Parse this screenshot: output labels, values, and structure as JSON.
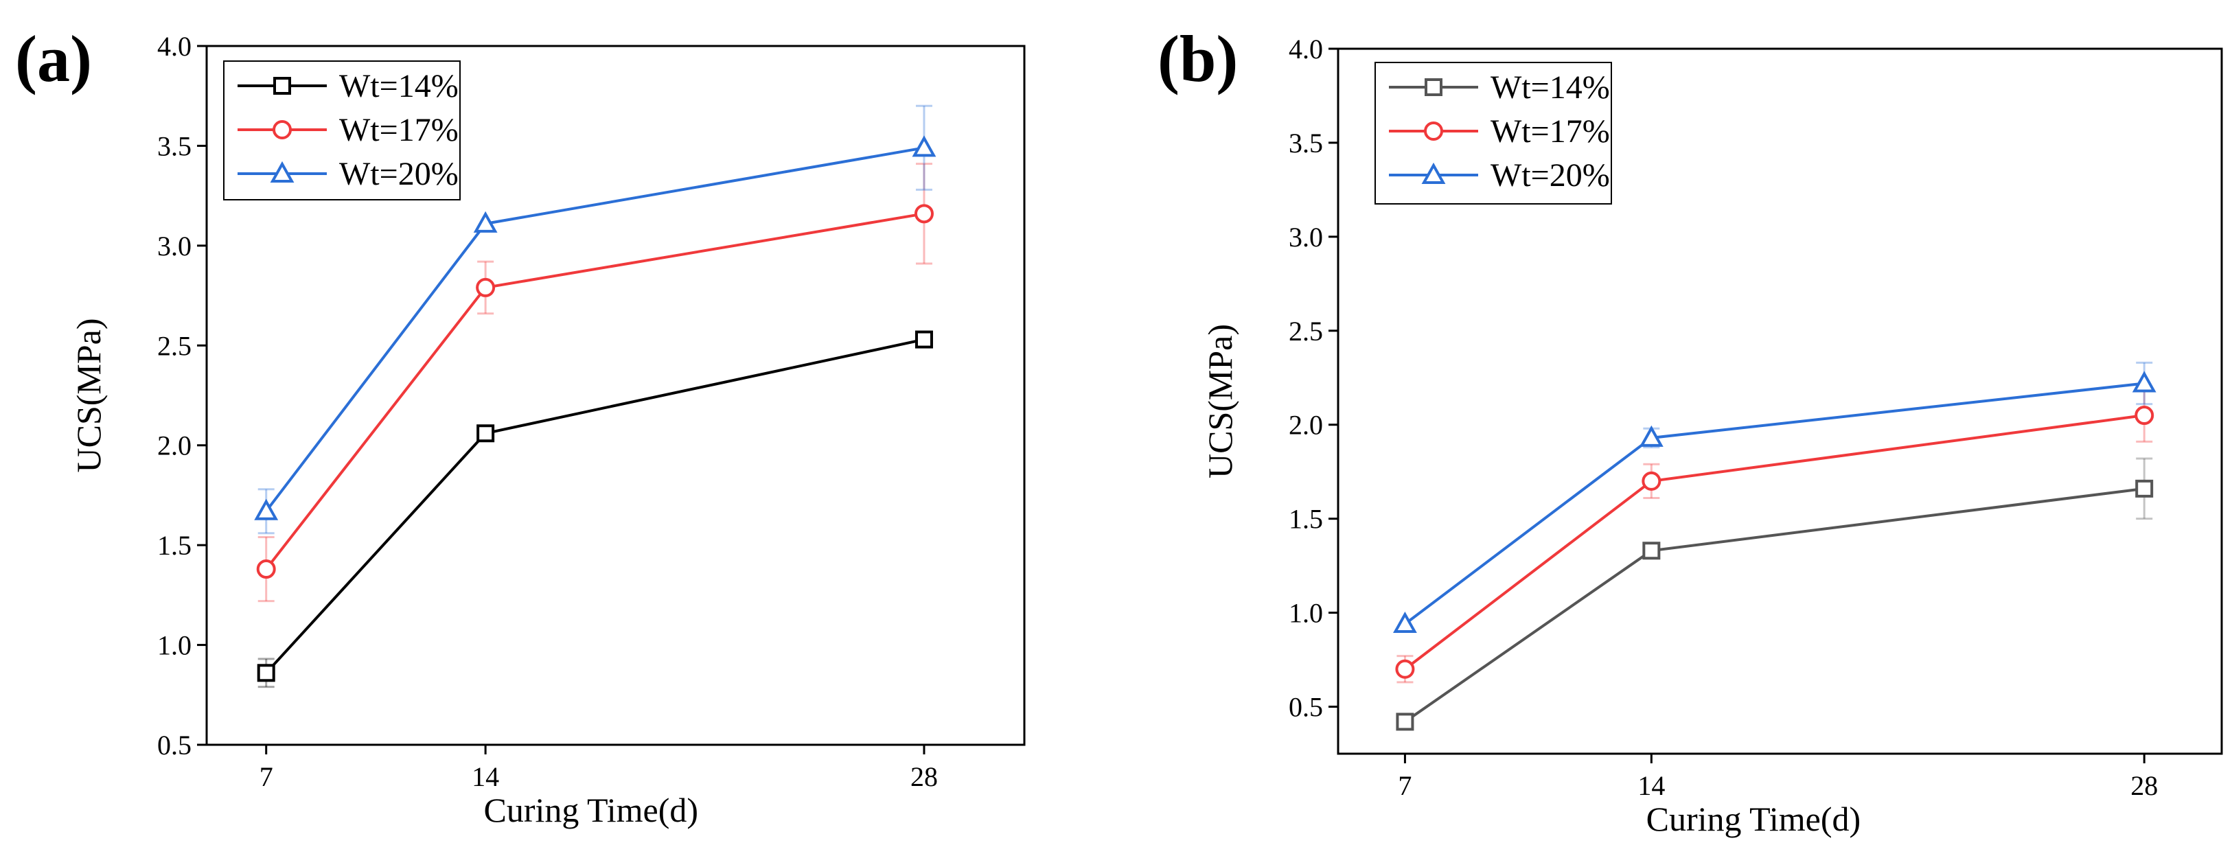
{
  "figure_labels": [
    "(a)",
    "(b)"
  ],
  "chart_data": [
    {
      "type": "line",
      "panel": "(a)",
      "xlabel": "Curing Time(d)",
      "ylabel": "UCS(MPa)",
      "x": [
        7,
        14,
        28
      ],
      "xticks": [
        "7",
        "14",
        "28"
      ],
      "xlim": [
        5.1,
        31.2
      ],
      "ylim": [
        0.5,
        4.0
      ],
      "yticks": [
        "0.5",
        "1.0",
        "1.5",
        "2.0",
        "2.5",
        "3.0",
        "3.5",
        "4.0"
      ],
      "legend_position": "top-left",
      "series": [
        {
          "name": "Wt=14%",
          "color": "#000000",
          "marker": "square",
          "values": [
            0.86,
            2.06,
            2.53
          ],
          "errors": [
            0.07,
            0.0,
            0.0
          ]
        },
        {
          "name": "Wt=17%",
          "color": "#f0393b",
          "marker": "circle",
          "values": [
            1.38,
            2.79,
            3.16
          ],
          "errors": [
            0.16,
            0.13,
            0.25
          ]
        },
        {
          "name": "Wt=20%",
          "color": "#2b6fd6",
          "marker": "triangle",
          "values": [
            1.67,
            3.11,
            3.49
          ],
          "errors": [
            0.11,
            0.0,
            0.21
          ]
        }
      ]
    },
    {
      "type": "line",
      "panel": "(b)",
      "xlabel": "Curing Time(d)",
      "ylabel": "UCS(MPa)",
      "x": [
        7,
        14,
        28
      ],
      "xticks": [
        "7",
        "14",
        "28"
      ],
      "xlim": [
        5.1,
        30.2
      ],
      "ylim": [
        0.25,
        4.0
      ],
      "yticks": [
        "0.5",
        "1.0",
        "1.5",
        "2.0",
        "2.5",
        "3.0",
        "3.5",
        "4.0"
      ],
      "legend_position": "top-left",
      "series": [
        {
          "name": "Wt=14%",
          "color": "#555555",
          "marker": "square",
          "values": [
            0.42,
            1.33,
            1.66
          ],
          "errors": [
            0.0,
            0.0,
            0.16
          ]
        },
        {
          "name": "Wt=17%",
          "color": "#f0393b",
          "marker": "circle",
          "values": [
            0.7,
            1.7,
            2.05
          ],
          "errors": [
            0.07,
            0.09,
            0.14
          ]
        },
        {
          "name": "Wt=20%",
          "color": "#2b6fd6",
          "marker": "triangle",
          "values": [
            0.94,
            1.93,
            2.22
          ],
          "errors": [
            0.0,
            0.05,
            0.11
          ]
        }
      ]
    }
  ]
}
